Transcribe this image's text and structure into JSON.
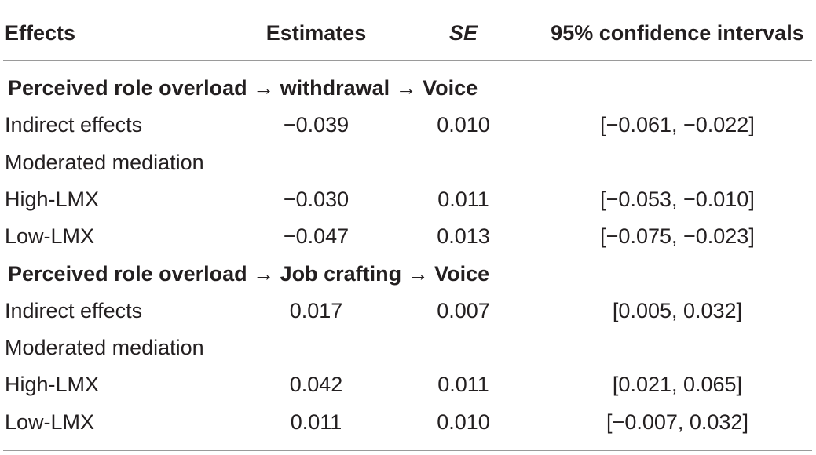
{
  "headers": {
    "effects": "Effects",
    "estimates": "Estimates",
    "se": "SE",
    "ci": "95% confidence intervals"
  },
  "sections": [
    {
      "title": "Perceived role overload → withdrawal → Voice",
      "rows": [
        {
          "effect": "Indirect effects",
          "estimate": "−0.039",
          "se": "0.010",
          "ci": "[−0.061, −0.022]"
        },
        {
          "effect": "Moderated mediation",
          "estimate": "",
          "se": "",
          "ci": ""
        },
        {
          "effect": "High-LMX",
          "estimate": "−0.030",
          "se": "0.011",
          "ci": "[−0.053, −0.010]"
        },
        {
          "effect": "Low-LMX",
          "estimate": "−0.047",
          "se": "0.013",
          "ci": "[−0.075, −0.023]"
        }
      ]
    },
    {
      "title": "Perceived role overload → Job crafting → Voice",
      "rows": [
        {
          "effect": "Indirect effects",
          "estimate": "0.017",
          "se": "0.007",
          "ci": "[0.005, 0.032]"
        },
        {
          "effect": "Moderated mediation",
          "estimate": "",
          "se": "",
          "ci": ""
        },
        {
          "effect": "High-LMX",
          "estimate": "0.042",
          "se": "0.011",
          "ci": "[0.021, 0.065]"
        },
        {
          "effect": "Low-LMX",
          "estimate": "0.011",
          "se": "0.010",
          "ci": "[−0.007, 0.032]"
        }
      ]
    }
  ]
}
